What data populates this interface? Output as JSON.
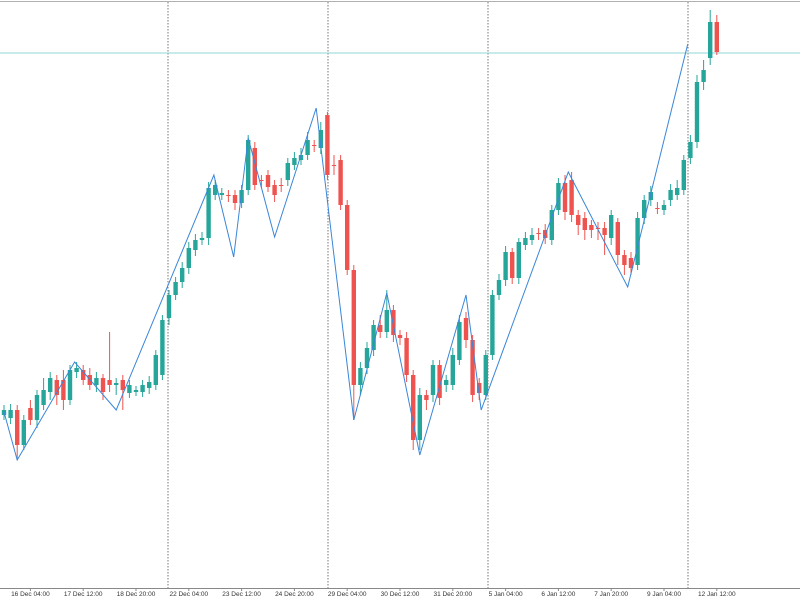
{
  "chart_data": {
    "type": "candlestick",
    "categories": [
      null,
      null,
      null,
      null,
      "16 Dec 04:00",
      null,
      null,
      null,
      null,
      null,
      null,
      null,
      "17 Dec 12:00",
      null,
      null,
      null,
      null,
      null,
      null,
      null,
      "18 Dec 20:00",
      null,
      null,
      null,
      null,
      null,
      null,
      null,
      "22 Dec 04:00",
      null,
      null,
      null,
      null,
      null,
      null,
      null,
      "23 Dec 12:00",
      null,
      null,
      null,
      null,
      null,
      null,
      null,
      "24 Dec 20:00",
      null,
      null,
      null,
      null,
      null,
      null,
      null,
      "29 Dec 04:00",
      null,
      null,
      null,
      null,
      null,
      null,
      null,
      "30 Dec 12:00",
      null,
      null,
      null,
      null,
      null,
      null,
      null,
      "31 Dec 20:00",
      null,
      null,
      null,
      null,
      null,
      null,
      null,
      "5 Jan 04:00",
      null,
      null,
      null,
      null,
      null,
      null,
      null,
      "6 Jan 12:00",
      null,
      null,
      null,
      null,
      null,
      null,
      null,
      "7 Jan 20:00",
      null,
      null,
      null,
      null,
      null,
      null,
      null,
      "9 Jan 04:00",
      null,
      null,
      null,
      null,
      null,
      null,
      null,
      "12 Jan 12:00"
    ],
    "open": [
      185,
      182,
      190,
      155,
      192,
      180,
      195,
      208,
      220,
      220,
      200,
      228,
      230,
      225,
      215,
      222,
      220,
      215,
      220,
      207,
      208,
      208,
      212,
      215,
      225,
      282,
      305,
      318,
      332,
      350,
      360,
      362,
      405,
      405,
      405,
      405,
      397,
      410,
      452,
      420,
      425,
      415,
      415,
      420,
      435,
      440,
      445,
      455,
      452,
      485,
      435,
      440,
      395,
      330,
      215,
      232,
      250,
      275,
      268,
      290,
      265,
      262,
      225,
      160,
      205,
      205,
      235,
      215,
      215,
      240,
      282,
      260,
      217,
      205,
      245,
      305,
      320,
      348,
      322,
      355,
      360,
      367,
      370,
      360,
      390,
      417,
      420,
      385,
      382,
      375,
      372,
      372,
      362,
      378,
      345,
      342,
      335,
      382,
      400,
      392,
      390,
      400,
      405,
      410,
      442,
      458,
      518,
      542,
      578
    ],
    "high": [
      195,
      196,
      195,
      185,
      200,
      210,
      222,
      228,
      225,
      230,
      235,
      238,
      235,
      232,
      228,
      226,
      268,
      222,
      225,
      220,
      214,
      220,
      224,
      250,
      285,
      310,
      323,
      338,
      358,
      366,
      368,
      418,
      420,
      412,
      410,
      410,
      415,
      465,
      458,
      425,
      430,
      420,
      422,
      442,
      448,
      452,
      468,
      460,
      478,
      488,
      445,
      445,
      400,
      335,
      238,
      258,
      280,
      285,
      310,
      295,
      270,
      268,
      230,
      212,
      210,
      240,
      240,
      225,
      252,
      285,
      288,
      265,
      222,
      250,
      310,
      326,
      354,
      352,
      362,
      368,
      372,
      372,
      376,
      395,
      422,
      425,
      428,
      390,
      388,
      380,
      378,
      378,
      390,
      382,
      350,
      348,
      388,
      405,
      414,
      398,
      400,
      416,
      420,
      445,
      465,
      525,
      540,
      590,
      585
    ],
    "low": [
      180,
      176,
      140,
      150,
      175,
      172,
      190,
      200,
      195,
      190,
      195,
      222,
      215,
      210,
      208,
      200,
      208,
      205,
      190,
      202,
      204,
      203,
      206,
      210,
      220,
      275,
      300,
      312,
      326,
      344,
      355,
      355,
      400,
      400,
      398,
      390,
      392,
      405,
      410,
      412,
      408,
      398,
      408,
      414,
      430,
      435,
      440,
      448,
      446,
      420,
      425,
      390,
      325,
      180,
      205,
      226,
      244,
      262,
      262,
      258,
      255,
      218,
      150,
      150,
      190,
      198,
      195,
      208,
      210,
      235,
      252,
      198,
      200,
      200,
      240,
      300,
      314,
      316,
      316,
      350,
      355,
      360,
      356,
      355,
      385,
      380,
      378,
      365,
      360,
      362,
      360,
      345,
      355,
      335,
      325,
      325,
      330,
      376,
      394,
      386,
      385,
      394,
      400,
      405,
      436,
      452,
      510,
      535,
      545
    ],
    "close": [
      190,
      190,
      155,
      180,
      180,
      205,
      210,
      222,
      205,
      200,
      230,
      232,
      220,
      215,
      222,
      208,
      215,
      217,
      210,
      215,
      210,
      215,
      218,
      245,
      280,
      305,
      318,
      332,
      352,
      360,
      362,
      412,
      415,
      407,
      404,
      397,
      410,
      460,
      415,
      419,
      413,
      405,
      414,
      437,
      442,
      445,
      460,
      454,
      470,
      425,
      434,
      395,
      330,
      215,
      232,
      252,
      275,
      268,
      290,
      265,
      262,
      225,
      160,
      205,
      200,
      235,
      202,
      220,
      245,
      278,
      260,
      205,
      207,
      245,
      305,
      320,
      348,
      322,
      358,
      362,
      365,
      366,
      362,
      390,
      417,
      388,
      385,
      375,
      370,
      370,
      371,
      365,
      385,
      345,
      335,
      332,
      382,
      400,
      408,
      391,
      395,
      410,
      412,
      440,
      458,
      518,
      530,
      578,
      548
    ],
    "up_color": "#26a69a",
    "down_color": "#ef5350",
    "ylim": [
      0,
      600
    ],
    "zigzag": {
      "color": "#3a86d8",
      "x": [
        0,
        2,
        10.7,
        17,
        31.8,
        34.8,
        37,
        41,
        47.3,
        53,
        58,
        63,
        70,
        72.3,
        85.5,
        94.5,
        103.6
      ],
      "values": [
        188,
        140,
        238,
        190,
        425,
        343,
        462,
        363,
        492,
        180,
        307,
        145,
        305,
        190,
        428,
        313,
        556
      ]
    },
    "level": {
      "value": 547,
      "color": "#8fd6d6"
    }
  }
}
